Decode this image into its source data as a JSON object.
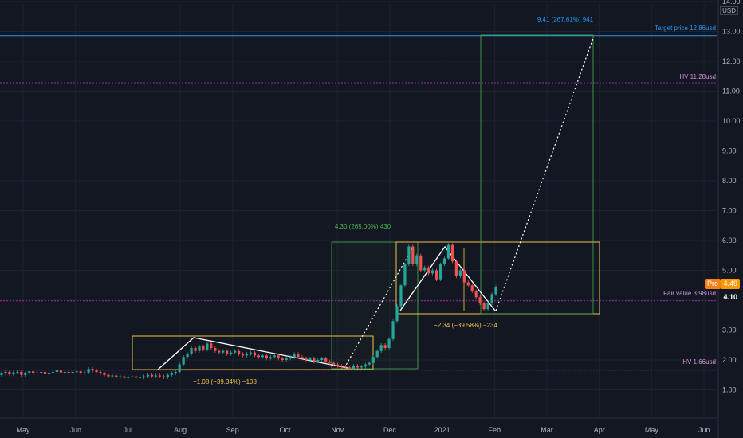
{
  "chart_data": {
    "type": "candlestick",
    "currency": "USD",
    "x_ticks": [
      "May",
      "Jun",
      "Jul",
      "Aug",
      "Sep",
      "Oct",
      "Nov",
      "Dec",
      "2021",
      "Feb",
      "Mar",
      "Apr",
      "May",
      "Jun"
    ],
    "y_ticks": [
      "1.00",
      "2.00",
      "3.00",
      "4.00",
      "5.00",
      "6.00",
      "7.00",
      "8.00",
      "9.00",
      "10.00",
      "11.00",
      "12.00",
      "13.00",
      "14.00"
    ],
    "ylim": [
      0,
      14
    ],
    "horizontal_levels": [
      {
        "label": "Target price 12.86usd",
        "value": 12.86,
        "color": "#2196f3"
      },
      {
        "label": "HV 11.28usd",
        "value": 11.28,
        "color": "#9c27b0"
      },
      {
        "label": "",
        "value": 9.0,
        "color": "#2196f3"
      },
      {
        "label": "Fair value 3.98usd",
        "value": 3.98,
        "color": "#9c27b0"
      },
      {
        "label": "HV 1.66usd",
        "value": 1.66,
        "color": "#9c27b0"
      }
    ],
    "measurements": [
      {
        "label": "9.41 (267.61%) 941",
        "color": "#2196f3"
      },
      {
        "label": "4.30 (265.00%) 430",
        "color": "#4caf50"
      },
      {
        "label": "−1.08 (−39.34%) −108",
        "color": "#f0c04a"
      },
      {
        "label": "−2.34 (−39.58%) −234",
        "color": "#f0c04a"
      }
    ],
    "price_labels": {
      "pre": "Pre",
      "last": "4.49",
      "close": "4.10"
    },
    "candles": [
      [
        1.5,
        1.55
      ],
      [
        1.55,
        1.6
      ],
      [
        1.6,
        1.52
      ],
      [
        1.52,
        1.58
      ],
      [
        1.58,
        1.6
      ],
      [
        1.6,
        1.5
      ],
      [
        1.5,
        1.55
      ],
      [
        1.55,
        1.62
      ],
      [
        1.62,
        1.55
      ],
      [
        1.55,
        1.58
      ],
      [
        1.58,
        1.6
      ],
      [
        1.6,
        1.52
      ],
      [
        1.52,
        1.55
      ],
      [
        1.55,
        1.6
      ],
      [
        1.6,
        1.65
      ],
      [
        1.65,
        1.58
      ],
      [
        1.58,
        1.6
      ],
      [
        1.6,
        1.55
      ],
      [
        1.55,
        1.6
      ],
      [
        1.6,
        1.62
      ],
      [
        1.62,
        1.55
      ],
      [
        1.55,
        1.58
      ],
      [
        1.58,
        1.7
      ],
      [
        1.7,
        1.65
      ],
      [
        1.65,
        1.6
      ],
      [
        1.6,
        1.55
      ],
      [
        1.55,
        1.5
      ],
      [
        1.5,
        1.45
      ],
      [
        1.45,
        1.48
      ],
      [
        1.48,
        1.42
      ],
      [
        1.42,
        1.45
      ],
      [
        1.45,
        1.4
      ],
      [
        1.4,
        1.42
      ],
      [
        1.42,
        1.45
      ],
      [
        1.45,
        1.4
      ],
      [
        1.4,
        1.42
      ],
      [
        1.42,
        1.45
      ],
      [
        1.45,
        1.5
      ],
      [
        1.5,
        1.45
      ],
      [
        1.45,
        1.48
      ],
      [
        1.48,
        1.45
      ],
      [
        1.45,
        1.42
      ],
      [
        1.42,
        1.5
      ],
      [
        1.5,
        1.55
      ],
      [
        1.55,
        1.6
      ],
      [
        1.6,
        1.85
      ],
      [
        1.85,
        2.1
      ],
      [
        2.1,
        2.2
      ],
      [
        2.2,
        2.4
      ],
      [
        2.4,
        2.3
      ],
      [
        2.3,
        2.45
      ],
      [
        2.45,
        2.35
      ],
      [
        2.35,
        2.55
      ],
      [
        2.55,
        2.4
      ],
      [
        2.4,
        2.3
      ],
      [
        2.3,
        2.25
      ],
      [
        2.25,
        2.3
      ],
      [
        2.3,
        2.2
      ],
      [
        2.2,
        2.25
      ],
      [
        2.25,
        2.3
      ],
      [
        2.3,
        2.2
      ],
      [
        2.2,
        2.15
      ],
      [
        2.15,
        2.2
      ],
      [
        2.2,
        2.25
      ],
      [
        2.25,
        2.15
      ],
      [
        2.15,
        2.1
      ],
      [
        2.1,
        2.15
      ],
      [
        2.15,
        2.05
      ],
      [
        2.05,
        2.1
      ],
      [
        2.1,
        2.15
      ],
      [
        2.15,
        2.05
      ],
      [
        2.05,
        2.0
      ],
      [
        2.0,
        2.05
      ],
      [
        2.05,
        2.1
      ],
      [
        2.1,
        2.2
      ],
      [
        2.2,
        2.1
      ],
      [
        2.1,
        2.05
      ],
      [
        2.05,
        2.0
      ],
      [
        2.0,
        2.05
      ],
      [
        2.05,
        1.95
      ],
      [
        1.95,
        2.0
      ],
      [
        2.0,
        2.05
      ],
      [
        2.05,
        1.95
      ],
      [
        1.95,
        1.9
      ],
      [
        1.9,
        1.85
      ],
      [
        1.85,
        1.8
      ],
      [
        1.8,
        1.78
      ],
      [
        1.78,
        1.75
      ],
      [
        1.75,
        1.72
      ],
      [
        1.72,
        1.8
      ],
      [
        1.8,
        1.75
      ],
      [
        1.75,
        1.78
      ],
      [
        1.78,
        1.85
      ],
      [
        1.85,
        1.9
      ],
      [
        1.9,
        2.1
      ],
      [
        2.1,
        2.3
      ],
      [
        2.3,
        2.5
      ],
      [
        2.5,
        2.4
      ],
      [
        2.4,
        2.7
      ],
      [
        2.7,
        3.3
      ],
      [
        3.3,
        3.8
      ],
      [
        3.8,
        4.5
      ],
      [
        4.5,
        5.2
      ],
      [
        5.2,
        5.8
      ],
      [
        5.8,
        5.2
      ],
      [
        5.2,
        5.5
      ],
      [
        5.5,
        5.0
      ],
      [
        5.0,
        5.1
      ],
      [
        5.1,
        4.9
      ],
      [
        4.9,
        5.0
      ],
      [
        5.0,
        4.7
      ],
      [
        4.7,
        5.2
      ],
      [
        5.2,
        5.4
      ],
      [
        5.4,
        5.85
      ],
      [
        5.85,
        5.3
      ],
      [
        5.3,
        4.8
      ],
      [
        4.8,
        5.0
      ],
      [
        5.0,
        4.6
      ],
      [
        4.6,
        4.5
      ],
      [
        4.5,
        4.3
      ],
      [
        4.3,
        4.1
      ],
      [
        4.1,
        3.9
      ],
      [
        3.9,
        3.7
      ],
      [
        3.7,
        3.9
      ],
      [
        3.9,
        4.2
      ],
      [
        4.2,
        4.45
      ]
    ]
  }
}
